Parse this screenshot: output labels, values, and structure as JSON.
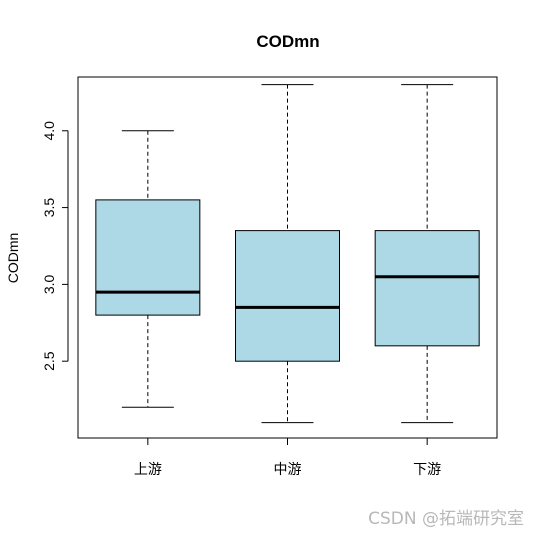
{
  "chart_data": {
    "type": "boxplot",
    "title": "CODmn",
    "xlabel": "",
    "ylabel": "CODmn",
    "categories": [
      "上游",
      "中游",
      "下游"
    ],
    "boxes": [
      {
        "min": 2.2,
        "q1": 2.8,
        "median": 2.95,
        "q3": 3.55,
        "max": 4.0
      },
      {
        "min": 2.1,
        "q1": 2.5,
        "median": 2.85,
        "q3": 3.35,
        "max": 4.3
      },
      {
        "min": 2.1,
        "q1": 2.6,
        "median": 3.05,
        "q3": 3.35,
        "max": 4.3
      }
    ],
    "ylim": [
      2.0,
      4.35
    ],
    "yticks": [
      2.5,
      3.0,
      3.5,
      4.0
    ],
    "ytick_labels": [
      "2.5",
      "3.0",
      "3.5",
      "4.0"
    ],
    "box_color": "#add8e6",
    "grid": false,
    "legend": "none"
  },
  "watermark": "CSDN @拓端研究室"
}
